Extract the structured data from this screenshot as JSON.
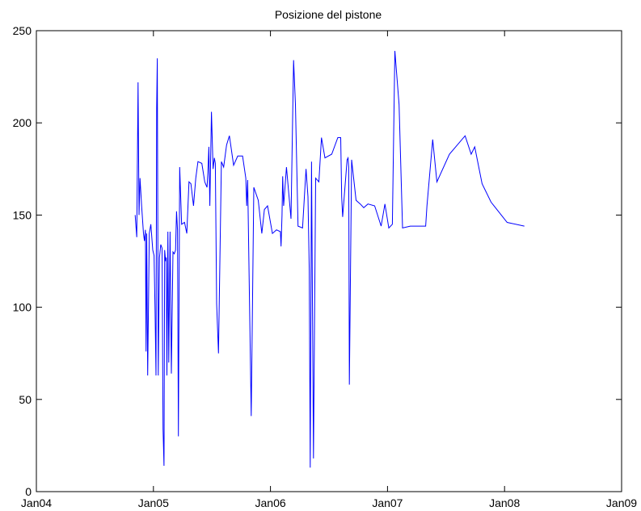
{
  "chart_data": {
    "type": "line",
    "title": "Posizione del pistone",
    "xlabel": "",
    "ylabel": "",
    "ylim": [
      0,
      250
    ],
    "yticks": [
      0,
      50,
      100,
      150,
      200,
      250
    ],
    "xlim_years": [
      2004,
      2009
    ],
    "xticks": [
      {
        "label": "Jan04",
        "year": 2004
      },
      {
        "label": "Jan05",
        "year": 2005
      },
      {
        "label": "Jan06",
        "year": 2006
      },
      {
        "label": "Jan07",
        "year": 2007
      },
      {
        "label": "Jan08",
        "year": 2008
      },
      {
        "label": "Jan09",
        "year": 2009
      }
    ],
    "grid": false,
    "series_color": "#0000ff",
    "series": [
      {
        "x": [
          "2004-11-05",
          "2004-11-10",
          "2004-11-14",
          "2004-11-17",
          "2004-11-20",
          "2004-11-25",
          "2004-12-01",
          "2004-12-04",
          "2004-12-07",
          "2004-12-09",
          "2004-12-11",
          "2004-12-14",
          "2004-12-19",
          "2004-12-24",
          "2004-12-30",
          "2005-01-03",
          "2005-01-06",
          "2005-01-09",
          "2005-01-11",
          "2005-01-13",
          "2005-01-16",
          "2005-01-20",
          "2005-01-24",
          "2005-01-28",
          "2005-01-31",
          "2005-02-03",
          "2005-02-05",
          "2005-02-08",
          "2005-02-10",
          "2005-02-12",
          "2005-02-15",
          "2005-02-18",
          "2005-02-22",
          "2005-02-26",
          "2005-03-03",
          "2005-03-07",
          "2005-03-11",
          "2005-03-14",
          "2005-03-17",
          "2005-03-20",
          "2005-03-24",
          "2005-03-30",
          "2005-04-08",
          "2005-04-15",
          "2005-04-22",
          "2005-04-28",
          "2005-05-06",
          "2005-05-13",
          "2005-05-20",
          "2005-06-01",
          "2005-06-10",
          "2005-06-17",
          "2005-06-20",
          "2005-06-23",
          "2005-06-26",
          "2005-07-01",
          "2005-07-06",
          "2005-07-10",
          "2005-07-13",
          "2005-07-17",
          "2005-07-23",
          "2005-08-01",
          "2005-08-08",
          "2005-08-17",
          "2005-08-26",
          "2005-09-08",
          "2005-09-21",
          "2005-10-06",
          "2005-10-16",
          "2005-10-19",
          "2005-10-22",
          "2005-11-02",
          "2005-11-10",
          "2005-11-24",
          "2005-12-05",
          "2005-12-13",
          "2005-12-23",
          "2006-01-07",
          "2006-01-20",
          "2006-02-01",
          "2006-02-03",
          "2006-02-06",
          "2006-02-08",
          "2006-02-11",
          "2006-02-20",
          "2006-03-06",
          "2006-03-14",
          "2006-03-20",
          "2006-03-28",
          "2006-04-11",
          "2006-04-22",
          "2006-04-28",
          "2006-05-02",
          "2006-05-05",
          "2006-05-09",
          "2006-05-15",
          "2006-05-22",
          "2006-06-01",
          "2006-06-09",
          "2006-06-20",
          "2006-07-11",
          "2006-07-30",
          "2006-08-08",
          "2006-08-11",
          "2006-08-14",
          "2006-08-28",
          "2006-08-31",
          "2006-09-02",
          "2006-09-04",
          "2006-09-11",
          "2006-09-25",
          "2006-10-08",
          "2006-10-19",
          "2006-11-01",
          "2006-11-22",
          "2006-12-12",
          "2006-12-24",
          "2007-01-05",
          "2007-01-16",
          "2007-01-24",
          "2007-02-06",
          "2007-02-17",
          "2007-03-13",
          "2007-04-30",
          "2007-05-04",
          "2007-05-22",
          "2007-06-04",
          "2007-07-13",
          "2007-08-31",
          "2007-09-19",
          "2007-09-30",
          "2007-10-23",
          "2007-11-20",
          "2008-01-09",
          "2008-03-03"
        ],
        "y": [
          150,
          138,
          222,
          150,
          170,
          155,
          140,
          136,
          142,
          76,
          140,
          63,
          140,
          145,
          131,
          128,
          99,
          63,
          208,
          235,
          63,
          127,
          134,
          132,
          34,
          14,
          131,
          125,
          127,
          63,
          141,
          70,
          141,
          64,
          130,
          129,
          131,
          152,
          142,
          30,
          176,
          145,
          146,
          140,
          168,
          167,
          155,
          170,
          179,
          178,
          168,
          165,
          173,
          187,
          155,
          206,
          175,
          181,
          178,
          102,
          75,
          179,
          176,
          188,
          193,
          177,
          182,
          182,
          170,
          155,
          169,
          41,
          165,
          158,
          140,
          153,
          155,
          140,
          142,
          141,
          133,
          150,
          171,
          155,
          176,
          148,
          234,
          210,
          144,
          143,
          175,
          160,
          120,
          13,
          179,
          18,
          170,
          168,
          192,
          181,
          183,
          192,
          192,
          160,
          149,
          180,
          181,
          176,
          58,
          180,
          158,
          156,
          154,
          156,
          155,
          144,
          156,
          143,
          145,
          239,
          210,
          143,
          144,
          144,
          155,
          191,
          168,
          183,
          193,
          183,
          187,
          167,
          157,
          146,
          144
        ]
      }
    ]
  }
}
